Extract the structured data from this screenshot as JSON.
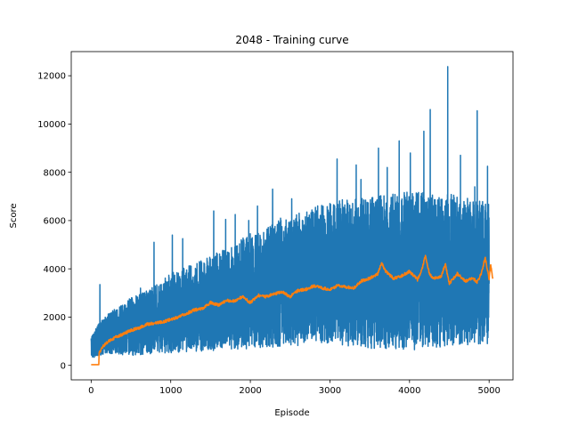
{
  "chart_data": {
    "type": "line",
    "title": "2048 - Training curve",
    "xlabel": "Episode",
    "ylabel": "Score",
    "xlim": [
      -250,
      5300
    ],
    "ylim": [
      -600,
      13000
    ],
    "xticks": [
      0,
      1000,
      2000,
      3000,
      4000,
      5000
    ],
    "yticks": [
      0,
      2000,
      4000,
      6000,
      8000,
      10000,
      12000
    ],
    "grid": false,
    "legend": "none",
    "colors": {
      "raw": "#1f77b4",
      "smoothed": "#ff7f0e"
    },
    "series": [
      {
        "key": "raw",
        "episodes": [
          0,
          5000
        ],
        "envelope_x": [
          0,
          100,
          200,
          500,
          800,
          1000,
          1500,
          2000,
          2500,
          3000,
          3500,
          4000,
          4500,
          5000
        ],
        "envelope_low": [
          250,
          400,
          500,
          400,
          500,
          500,
          600,
          700,
          800,
          900,
          700,
          600,
          800,
          900
        ],
        "envelope_high": [
          1200,
          1800,
          2100,
          2800,
          3300,
          3800,
          4500,
          5500,
          6200,
          6800,
          7000,
          7200,
          7100,
          6800
        ],
        "spikes": [
          [
            110,
            3350
          ],
          [
            620,
            3200
          ],
          [
            790,
            5100
          ],
          [
            1020,
            5400
          ],
          [
            1150,
            5250
          ],
          [
            1540,
            6400
          ],
          [
            1690,
            6050
          ],
          [
            1810,
            6250
          ],
          [
            1980,
            6000
          ],
          [
            2090,
            6600
          ],
          [
            2280,
            7300
          ],
          [
            2380,
            6100
          ],
          [
            2520,
            6900
          ],
          [
            3000,
            6700
          ],
          [
            3090,
            8550
          ],
          [
            3330,
            8300
          ],
          [
            3390,
            7700
          ],
          [
            3610,
            9000
          ],
          [
            3720,
            8200
          ],
          [
            3870,
            9300
          ],
          [
            4010,
            8800
          ],
          [
            4180,
            9700
          ],
          [
            4260,
            10600
          ],
          [
            4480,
            12380
          ],
          [
            4640,
            8700
          ],
          [
            4820,
            7400
          ],
          [
            4850,
            10550
          ],
          [
            4980,
            8250
          ]
        ]
      },
      {
        "key": "smoothed",
        "x": [
          0,
          50,
          99,
          100,
          150,
          200,
          300,
          400,
          500,
          600,
          700,
          800,
          900,
          1000,
          1100,
          1200,
          1300,
          1400,
          1500,
          1600,
          1700,
          1800,
          1900,
          2000,
          2100,
          2200,
          2300,
          2400,
          2500,
          2600,
          2700,
          2800,
          2900,
          3000,
          3100,
          3200,
          3300,
          3400,
          3500,
          3600,
          3650,
          3700,
          3800,
          3900,
          4000,
          4100,
          4150,
          4200,
          4250,
          4300,
          4400,
          4450,
          4500,
          4600,
          4700,
          4800,
          4850,
          4900,
          4950,
          5000,
          5020,
          5050
        ],
        "y": [
          30,
          30,
          30,
          500,
          800,
          950,
          1150,
          1300,
          1450,
          1550,
          1700,
          1750,
          1800,
          1900,
          2000,
          2150,
          2300,
          2350,
          2600,
          2500,
          2700,
          2650,
          2850,
          2600,
          2900,
          2850,
          2950,
          3050,
          2850,
          3100,
          3150,
          3300,
          3200,
          3150,
          3300,
          3250,
          3200,
          3500,
          3600,
          3800,
          4250,
          3900,
          3600,
          3700,
          3900,
          3550,
          3900,
          4550,
          3800,
          3600,
          3700,
          4200,
          3400,
          3800,
          3500,
          3600,
          3450,
          3800,
          4450,
          3600,
          4200,
          3500
        ]
      }
    ]
  }
}
